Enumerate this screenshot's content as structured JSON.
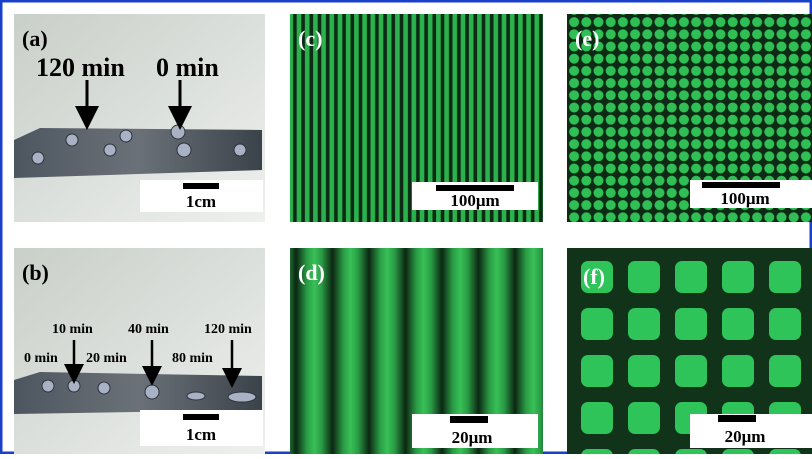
{
  "panels": [
    {
      "label": "(a)",
      "annotations": [
        "120 min",
        "0 min"
      ],
      "scale_bar": "1cm"
    },
    {
      "label": "(b)",
      "annotations": [
        "10 min",
        "40 min",
        "120 min",
        "0 min",
        "20 min",
        "80 min"
      ],
      "scale_bar": "1cm"
    },
    {
      "label": "(c)",
      "scale_bar": "100μm"
    },
    {
      "label": "(d)",
      "scale_bar": "20μm"
    },
    {
      "label": "(e)",
      "scale_bar": "100μm"
    },
    {
      "label": "(f)",
      "scale_bar": "20μm"
    }
  ]
}
